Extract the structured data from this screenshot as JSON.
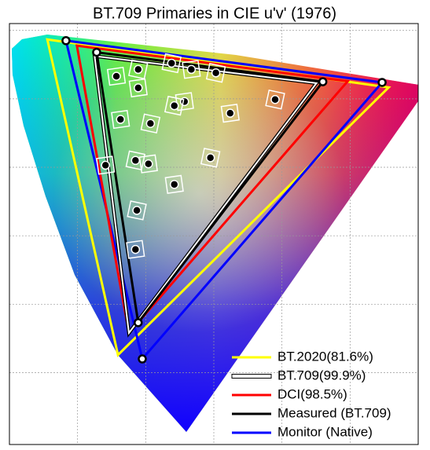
{
  "chart_data": {
    "type": "gamut",
    "title": "BT.709 Primaries in CIE u'v' (1976)",
    "xlim": [
      0,
      0.6
    ],
    "ylim": [
      -0.005,
      0.61
    ],
    "xticks": [
      0.1,
      0.2,
      0.3,
      0.4,
      0.5
    ],
    "yticks": [
      0.1,
      0.2,
      0.3,
      0.4,
      0.5,
      0.6
    ],
    "grid": true,
    "tick_labels": false,
    "legend": "lower right",
    "series": [
      {
        "name": "BT.2020(81.6%)",
        "color": "#ffff00",
        "x": [
          0.0556,
          0.5566,
          0.1593
        ],
        "y": [
          0.5868,
          0.5167,
          0.1258
        ],
        "marker": false
      },
      {
        "name": "BT.709(99.9%)",
        "color": "#ffffff",
        "x": [
          0.125,
          0.4507,
          0.1754
        ],
        "y": [
          0.5625,
          0.5229,
          0.1579
        ],
        "marker": false
      },
      {
        "name": "DCI(98.5%)",
        "color": "#ff0000",
        "x": [
          0.099,
          0.4964,
          0.1754
        ],
        "y": [
          0.5777,
          0.5256,
          0.1579
        ],
        "marker": false
      },
      {
        "name": "Measured (BT.709)",
        "color": "#000000",
        "x": [
          0.128,
          0.46,
          0.189
        ],
        "y": [
          0.568,
          0.525,
          0.173
        ],
        "marker": true
      },
      {
        "name": "Monitor (Native)",
        "color": "#0000ff",
        "x": [
          0.083,
          0.547,
          0.195
        ],
        "y": [
          0.585,
          0.524,
          0.12
        ],
        "marker": true
      }
    ],
    "points": {
      "color": "#000000",
      "x": [
        0.157,
        0.189,
        0.189,
        0.238,
        0.267,
        0.303,
        0.257,
        0.242,
        0.324,
        0.39,
        0.163,
        0.207,
        0.141,
        0.185,
        0.204,
        0.295,
        0.242,
        0.187,
        0.185
      ],
      "y": [
        0.533,
        0.543,
        0.516,
        0.552,
        0.543,
        0.538,
        0.496,
        0.49,
        0.479,
        0.499,
        0.47,
        0.464,
        0.403,
        0.41,
        0.405,
        0.414,
        0.375,
        0.337,
        0.28
      ]
    }
  }
}
